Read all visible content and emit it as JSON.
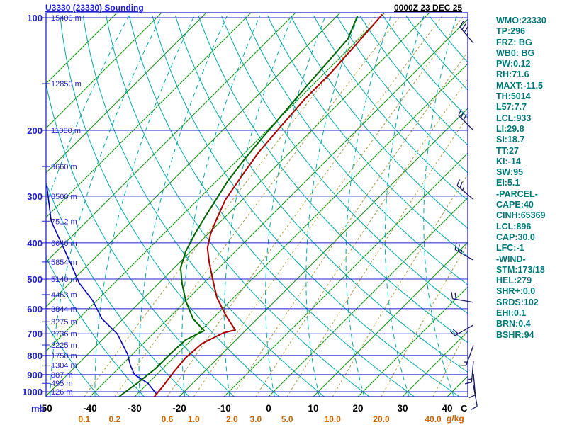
{
  "header": {
    "title": "U3330 (23330) Sounding",
    "datetime": "0000Z 23 DEC 25"
  },
  "axes": {
    "pressure_unit": "mb",
    "temp_unit": "C",
    "mixing_unit": "g/kg",
    "pressure_ticks": [
      100,
      200,
      300,
      400,
      500,
      600,
      700,
      800,
      900,
      1000
    ],
    "temp_ticks": [
      -50,
      -40,
      -30,
      -20,
      -10,
      0,
      10,
      20,
      30,
      40
    ],
    "mixing_ratio_ticks": [
      0.1,
      0.2,
      0.6,
      1.0,
      2.0,
      3.0,
      5.0,
      10.0,
      20.0,
      40.0
    ],
    "height_labels": [
      {
        "p": 100,
        "label": "15400 m"
      },
      {
        "p": 150,
        "label": "12850 m"
      },
      {
        "p": 200,
        "label": "11080 m"
      },
      {
        "p": 250,
        "label": "9660 m"
      },
      {
        "p": 300,
        "label": "8500 m"
      },
      {
        "p": 350,
        "label": "7512 m"
      },
      {
        "p": 400,
        "label": "6640 m"
      },
      {
        "p": 450,
        "label": "5854 m"
      },
      {
        "p": 500,
        "label": "5140 m"
      },
      {
        "p": 550,
        "label": "4463 m"
      },
      {
        "p": 600,
        "label": "3844 m"
      },
      {
        "p": 650,
        "label": "3275 m"
      },
      {
        "p": 700,
        "label": "2736 m"
      },
      {
        "p": 750,
        "label": "2225 m"
      },
      {
        "p": 800,
        "label": "1750 m"
      },
      {
        "p": 850,
        "label": "1304 m"
      },
      {
        "p": 900,
        "label": "887 m"
      },
      {
        "p": 950,
        "label": "495 m"
      },
      {
        "p": 1000,
        "label": "126 m"
      }
    ]
  },
  "stats_panel": {
    "lines": [
      "WMO:23330",
      "TP:296",
      "FRZ: BG",
      "WB0: BG",
      "PW:0.12",
      "RH:71.6",
      "MAXT:-11.5",
      "TH:5014",
      "L57:7.7",
      "LCL:933",
      "LI:29.8",
      "SI:18.7",
      "TT:27",
      "KI:-14",
      "SW:95",
      "EI:5.1",
      "-PARCEL-",
      "CAPE:40",
      "CINH:65369",
      "LCL:896",
      "CAP:30.0",
      "LFC:-1",
      "-WIND-",
      "STM:173/18",
      "HEL:279",
      "SHR+:0.0",
      "SRDS:102",
      "EHI:0.1",
      "BRN:0.4",
      "BSHR:94"
    ]
  },
  "chart_data": {
    "type": "skewt-logp-sounding",
    "title": "U3330 (23330) Sounding",
    "valid_time": "0000Z 23 DEC 25",
    "pressure_axis_mb": {
      "min": 100,
      "max": 1030,
      "scale": "log"
    },
    "temperature_axis_c": {
      "min": -50,
      "max": 40,
      "skew": "45deg"
    },
    "temperature_trace_p_T": [
      [
        1031,
        -25.6
      ],
      [
        966,
        -26.0
      ],
      [
        885,
        -26.8
      ],
      [
        811,
        -27.3
      ],
      [
        743,
        -26.8
      ],
      [
        696,
        -24.4
      ],
      [
        684,
        -22.4
      ],
      [
        624,
        -27.9
      ],
      [
        560,
        -33.8
      ],
      [
        502,
        -38.7
      ],
      [
        450,
        -43.5
      ],
      [
        413,
        -47.0
      ],
      [
        378,
        -49.5
      ],
      [
        346,
        -51.4
      ],
      [
        307,
        -53.8
      ],
      [
        267,
        -55.4
      ],
      [
        229,
        -57.0
      ],
      [
        197,
        -57.8
      ],
      [
        165,
        -58.6
      ],
      [
        142,
        -58.6
      ],
      [
        116,
        -59.4
      ],
      [
        98,
        -60.2
      ]
    ],
    "dewpoint_trace_p_T": [
      [
        1031,
        -33.5
      ],
      [
        945,
        -32.4
      ],
      [
        866,
        -31.6
      ],
      [
        794,
        -31.6
      ],
      [
        727,
        -31.3
      ],
      [
        687,
        -29.2
      ],
      [
        638,
        -34.4
      ],
      [
        572,
        -40.0
      ],
      [
        513,
        -44.8
      ],
      [
        466,
        -48.6
      ],
      [
        422,
        -51.1
      ],
      [
        378,
        -53.0
      ],
      [
        339,
        -54.6
      ],
      [
        307,
        -55.9
      ],
      [
        273,
        -57.5
      ],
      [
        239,
        -58.6
      ],
      [
        210,
        -59.4
      ],
      [
        180,
        -60.2
      ],
      [
        155,
        -61.0
      ],
      [
        133,
        -61.7
      ],
      [
        114,
        -62.4
      ],
      [
        99,
        -65.4
      ]
    ],
    "parcel_trace_p_T": [
      [
        1022,
        -25.2
      ],
      [
        950,
        -30.0
      ],
      [
        900,
        -35.0
      ],
      [
        850,
        -38.0
      ],
      [
        794,
        -41.1
      ],
      [
        700,
        -48.0
      ],
      [
        638,
        -54.8
      ],
      [
        570,
        -61.0
      ],
      [
        513,
        -67.8
      ],
      [
        460,
        -73.5
      ],
      [
        413,
        -79.2
      ],
      [
        350,
        -88.0
      ],
      [
        281,
        -97.0
      ]
    ],
    "wind_barbs": [
      {
        "p": 117,
        "dir": 320,
        "spd": 35
      },
      {
        "p": 200,
        "dir": 315,
        "spd": 30
      },
      {
        "p": 306,
        "dir": 310,
        "spd": 25
      },
      {
        "p": 445,
        "dir": 300,
        "spd": 25
      },
      {
        "p": 577,
        "dir": 280,
        "spd": 20
      },
      {
        "p": 663,
        "dir": 240,
        "spd": 20
      },
      {
        "p": 752,
        "dir": 200,
        "spd": 15
      },
      {
        "p": 828,
        "dir": 185,
        "spd": 15
      },
      {
        "p": 896,
        "dir": 175,
        "spd": 10
      },
      {
        "p": 962,
        "dir": 170,
        "spd": 10
      }
    ]
  },
  "colors": {
    "isobar": "#2222cc",
    "isotherm": "#149414",
    "dry_adiabat": "#00a8a8",
    "moist_adiabat": "#00a8a8",
    "mixing_line": "#a89a3c",
    "mixing_label": "#cc6600",
    "temperature": "#aa0000",
    "dewpoint": "#006400",
    "parcel": "#0000bb",
    "barb": "#1a1a66",
    "stats_text": "#007777",
    "title": "#2222cc",
    "datetime": "#000000",
    "temp_label": "#000000"
  }
}
